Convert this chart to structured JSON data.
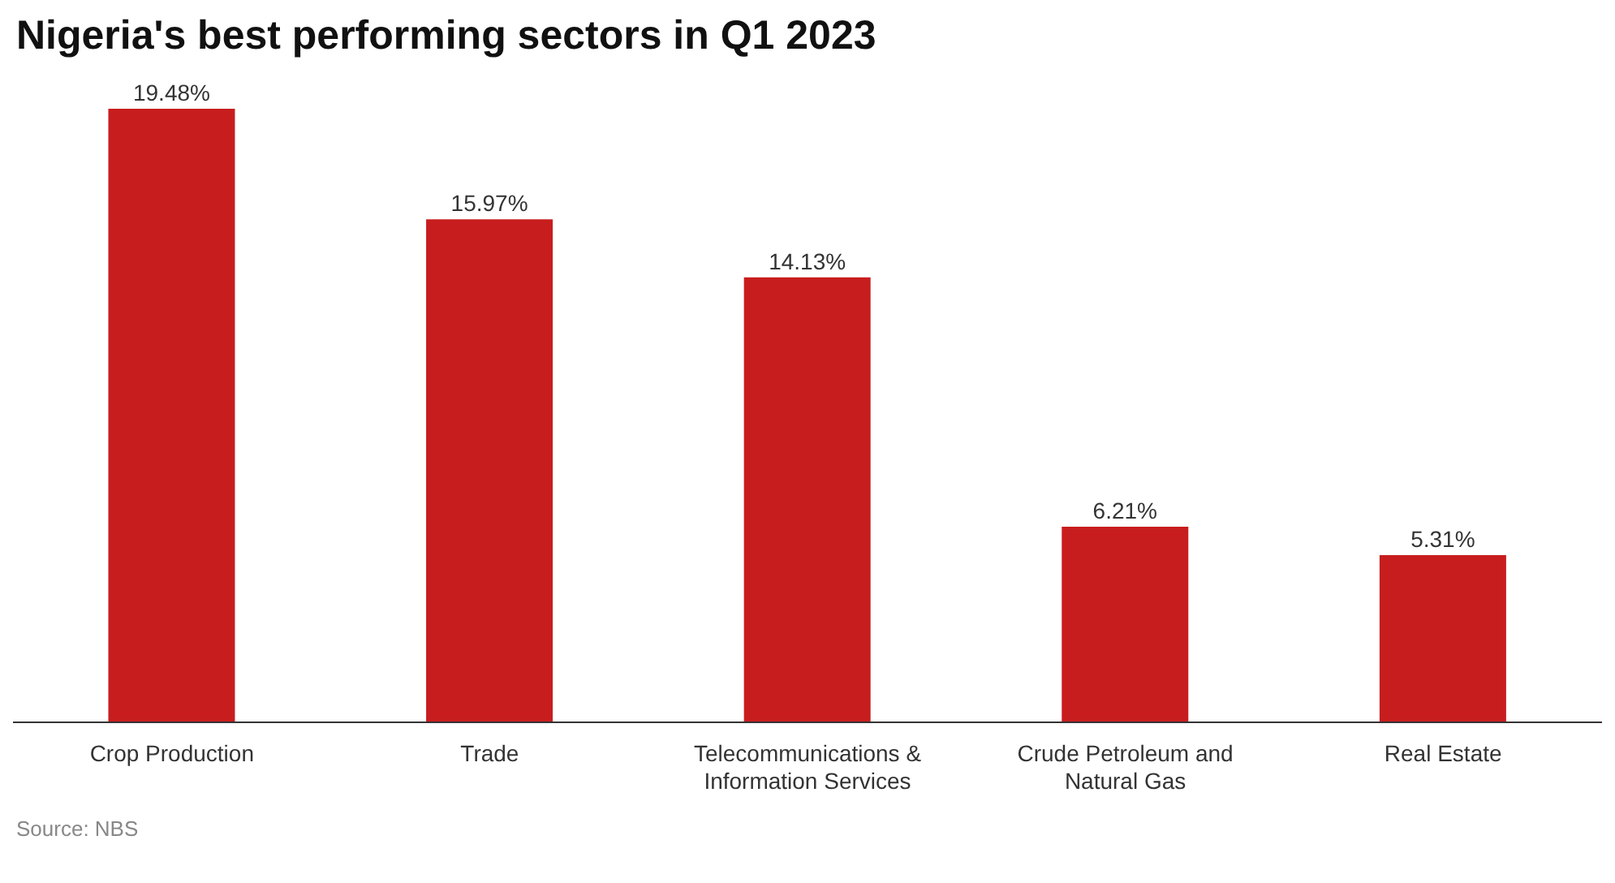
{
  "chart_data": {
    "type": "bar",
    "title": "Nigeria's best performing sectors in Q1 2023",
    "categories": [
      "Crop Production",
      "Trade",
      "Telecommunications & Information Services",
      "Crude Petroleum and Natural Gas",
      "Real Estate"
    ],
    "values": [
      19.48,
      15.97,
      14.13,
      6.21,
      5.31
    ],
    "value_labels": [
      "19.48%",
      "15.97%",
      "14.13%",
      "6.21%",
      "5.31%"
    ],
    "color": "#c81d1e",
    "annotations": [
      "Source: NBS"
    ]
  }
}
